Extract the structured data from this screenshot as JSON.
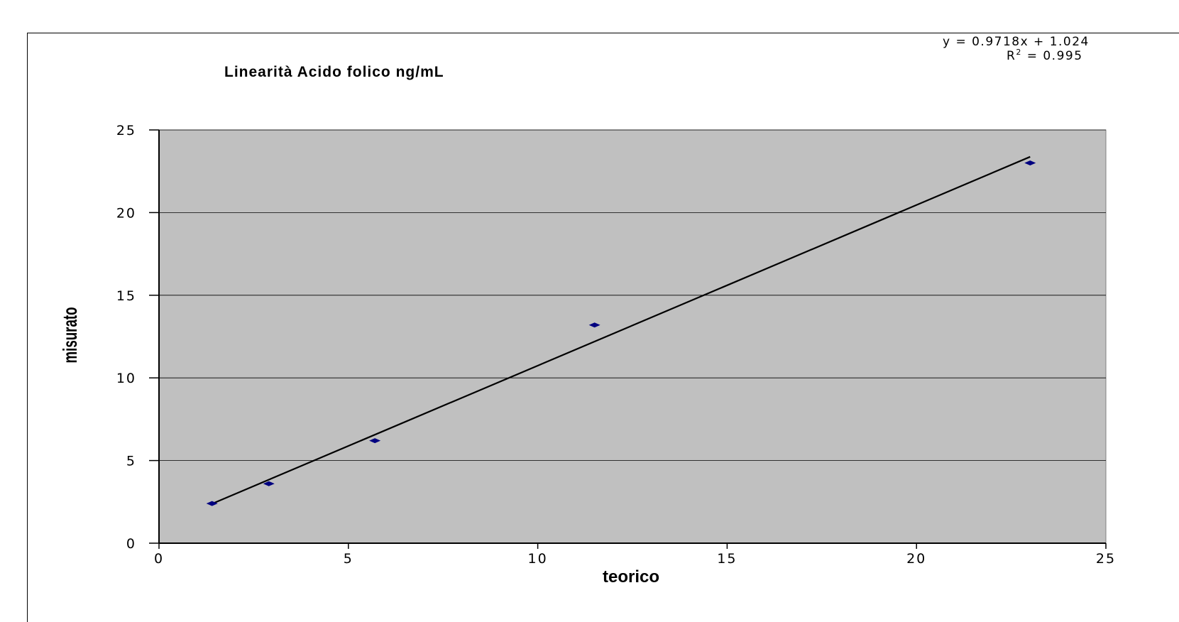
{
  "chart_data": {
    "type": "scatter",
    "title": "Linearità Acido folico ng/mL",
    "xlabel": "teorico",
    "ylabel": "misurato",
    "xlim": [
      0,
      25
    ],
    "ylim": [
      0,
      25
    ],
    "xticks": [
      0,
      5,
      10,
      15,
      20,
      25
    ],
    "yticks": [
      0,
      5,
      10,
      15,
      20,
      25
    ],
    "grid": "horizontal",
    "plot_background": "#c0c0c0",
    "marker_color": "#000080",
    "trendline_color": "#000000",
    "series": [
      {
        "points": [
          {
            "x": 1.4,
            "y": 2.4
          },
          {
            "x": 2.9,
            "y": 3.6
          },
          {
            "x": 5.7,
            "y": 6.2
          },
          {
            "x": 11.5,
            "y": 13.2
          },
          {
            "x": 23.0,
            "y": 23.0
          }
        ]
      }
    ],
    "trendline": {
      "slope": 0.9718,
      "intercept": 1.024,
      "x_range": [
        1.4,
        23.0
      ],
      "equation": "y = 0.9718x + 1.024",
      "r_squared_label": "R",
      "r_squared_sup": "2",
      "r_squared_value": " = 0.995"
    }
  }
}
